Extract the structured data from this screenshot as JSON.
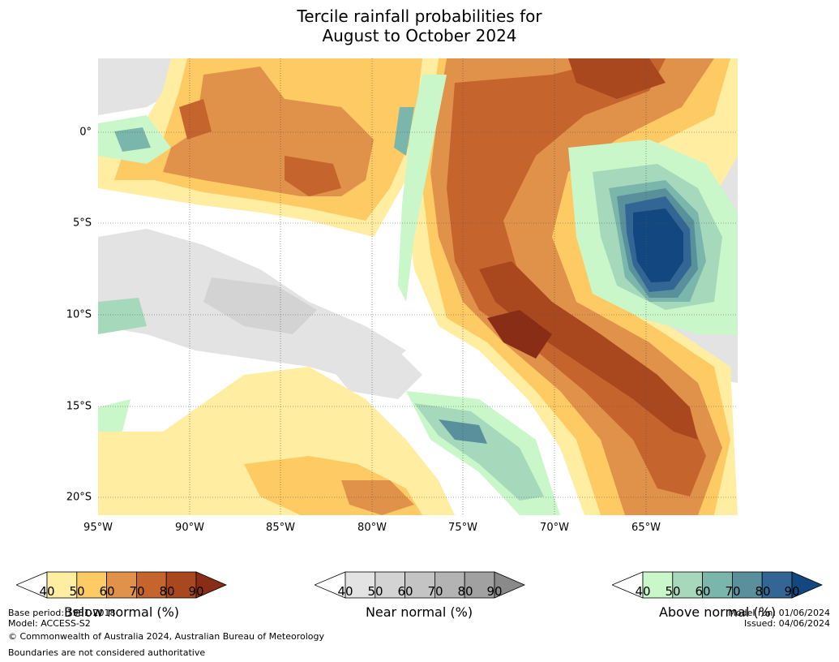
{
  "title_line1": "Tercile rainfall probabilities for",
  "title_line2": "August to October 2024",
  "lat_labels": [
    "0°",
    "5°S",
    "10°S",
    "15°S",
    "20°S"
  ],
  "lon_labels": [
    "95°W",
    "90°W",
    "85°W",
    "80°W",
    "75°W",
    "70°W",
    "65°W"
  ],
  "colorbars": [
    {
      "title": "Below normal (%)",
      "ticks": [
        "40",
        "50",
        "60",
        "70",
        "80",
        "90"
      ],
      "colors": [
        "#ffeea1",
        "#fdca64",
        "#e0924a",
        "#c6642e",
        "#a9481f",
        "#8a2d16"
      ]
    },
    {
      "title": "Near normal (%)",
      "ticks": [
        "40",
        "50",
        "60",
        "70",
        "80",
        "90"
      ],
      "colors": [
        "#e3e3e3",
        "#d3d3d3",
        "#c4c4c4",
        "#b3b3b3",
        "#a1a1a1",
        "#8a8a8a"
      ]
    },
    {
      "title": "Above normal (%)",
      "ticks": [
        "40",
        "50",
        "60",
        "70",
        "80",
        "90"
      ],
      "colors": [
        "#c9f7c9",
        "#a6d8bb",
        "#7ab6ab",
        "#5a8f9c",
        "#346695",
        "#12487f"
      ]
    }
  ],
  "footer": {
    "base_period": "Base period: 1981-2018",
    "model": "Model: ACCESS-S2",
    "copyright": "© Commonwealth of Australia 2024, Australian Bureau of Meteorology",
    "boundaries": "Boundaries are not considered authoritative",
    "model_run": "Model run: 01/06/2024",
    "issued": "Issued: 04/06/2024"
  },
  "map_palette": {
    "white": "#ffffff",
    "below": [
      "#ffeea1",
      "#fdca64",
      "#e0924a",
      "#c6642e",
      "#a9481f",
      "#8a2d16"
    ],
    "near": [
      "#e3e3e3",
      "#d3d3d3",
      "#c4c4c4"
    ],
    "above": [
      "#c9f7c9",
      "#a6d8bb",
      "#7ab6ab",
      "#5a8f9c",
      "#346695",
      "#12487f"
    ]
  }
}
